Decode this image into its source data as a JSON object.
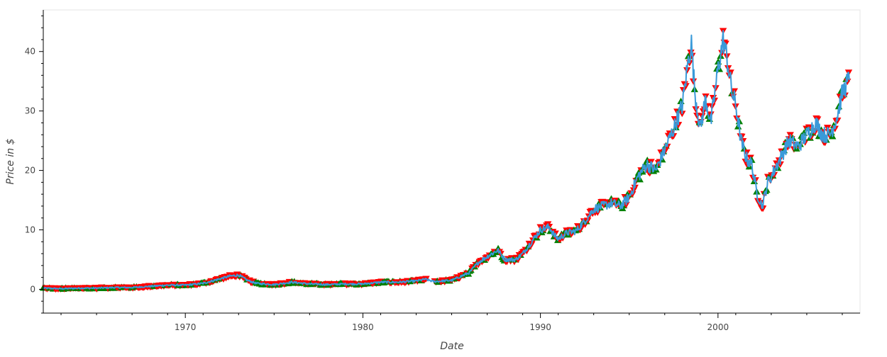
{
  "chart_data": {
    "type": "line",
    "xlabel": "Date",
    "ylabel": "Price in $",
    "xlim": [
      1962.0,
      2008.0
    ],
    "ylim": [
      -4.0,
      47.0
    ],
    "x_tick_labels": [
      "1970",
      "1980",
      "1990",
      "2000"
    ],
    "x_tick_values": [
      1970,
      1980,
      1990,
      2000
    ],
    "y_tick_labels": [
      "0",
      "10",
      "20",
      "30",
      "40"
    ],
    "y_tick_values": [
      0,
      10,
      20,
      30,
      40
    ],
    "grid": false,
    "series": [
      {
        "kind": "price-line",
        "x": [
          1962.0,
          1963.0,
          1964.0,
          1965.0,
          1966.0,
          1967.0,
          1968.0,
          1969.0,
          1970.0,
          1971.0,
          1972.0,
          1972.5,
          1973.0,
          1973.5,
          1974.0,
          1975.0,
          1976.0,
          1977.0,
          1978.0,
          1979.0,
          1980.0,
          1981.0,
          1982.0,
          1983.0,
          1983.5,
          1984.0,
          1985.0,
          1986.0,
          1986.5,
          1987.0,
          1987.6,
          1988.0,
          1988.6,
          1989.0,
          1989.5,
          1990.0,
          1990.5,
          1990.8,
          1991.0,
          1991.5,
          1992.0,
          1992.5,
          1993.0,
          1993.5,
          1994.0,
          1994.5,
          1995.0,
          1995.5,
          1996.0,
          1996.5,
          1997.0,
          1997.5,
          1998.0,
          1998.3,
          1998.5,
          1998.7,
          1999.0,
          1999.3,
          1999.6,
          2000.0,
          2000.3,
          2000.5,
          2000.8,
          2001.0,
          2001.3,
          2001.6,
          2001.9,
          2002.2,
          2002.5,
          2002.8,
          2003.0,
          2003.5,
          2004.0,
          2004.5,
          2005.0,
          2005.5,
          2005.9,
          2006.3,
          2006.7,
          2007.0,
          2007.4
        ],
        "values": [
          0.2,
          0.1,
          0.2,
          0.2,
          0.3,
          0.3,
          0.5,
          0.7,
          0.7,
          1.0,
          1.8,
          2.2,
          2.4,
          1.5,
          1.0,
          0.8,
          1.2,
          0.9,
          0.8,
          0.9,
          0.9,
          1.2,
          1.2,
          1.4,
          1.7,
          1.3,
          1.5,
          2.8,
          4.5,
          5.5,
          6.6,
          5.0,
          5.0,
          6.0,
          8.0,
          10.0,
          10.5,
          9.0,
          8.5,
          9.5,
          9.8,
          11.5,
          13.5,
          14.0,
          14.5,
          14.0,
          15.5,
          19.0,
          21.0,
          20.0,
          23.5,
          27.0,
          31.0,
          38.0,
          41.5,
          33.0,
          27.0,
          32.0,
          28.0,
          37.0,
          42.0,
          39.0,
          33.0,
          31.0,
          25.0,
          22.0,
          21.0,
          16.0,
          14.0,
          18.0,
          19.0,
          22.0,
          25.0,
          24.0,
          26.0,
          28.0,
          26.0,
          26.0,
          29.0,
          33.0,
          35.5
        ],
        "color": "#3a9ad9"
      }
    ],
    "markers": {
      "up_color": "#008000",
      "down_color": "#ff0000",
      "up_symbol": "triangle",
      "down_symbol": "inverted_triangle"
    }
  }
}
